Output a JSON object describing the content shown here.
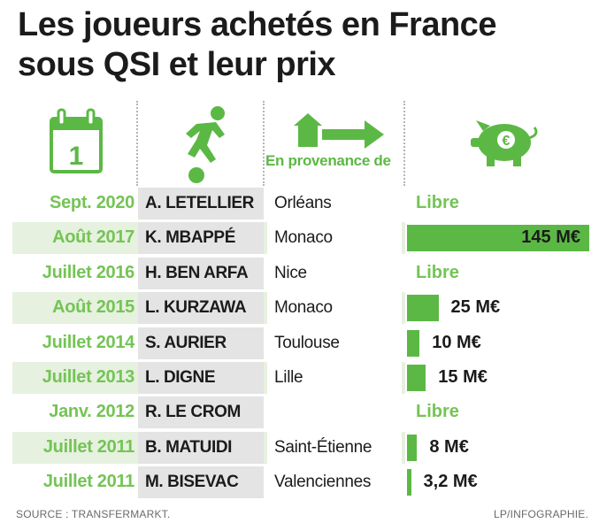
{
  "title_lines": [
    "Les joueurs achetés en France",
    "sous QSI et leur prix"
  ],
  "header": {
    "provenance_label": "En provenance de",
    "calendar_number": "1",
    "icons": [
      "calendar-icon",
      "football-player-icon",
      "house-arrow-icon",
      "piggy-bank-euro-icon"
    ]
  },
  "colors": {
    "accent": "#5cb845",
    "date_text": "#74c455",
    "row_band": "#e6f1df",
    "name_cell": "#e4e4e4"
  },
  "chart_data": {
    "type": "bar",
    "categories": [
      "A. LETELLIER",
      "K. MBAPPÉ",
      "H. BEN ARFA",
      "L. KURZAWA",
      "S. AURIER",
      "L. DIGNE",
      "R. LE CROM",
      "B. MATUIDI",
      "M. BISEVAC"
    ],
    "values": [
      0,
      145,
      0,
      25,
      10,
      15,
      0,
      8,
      3.2
    ],
    "unit": "M€",
    "max": 145,
    "rows": [
      {
        "date": "Sept. 2020",
        "player": "A. LETELLIER",
        "from": "Orléans",
        "value": null,
        "label": "Libre"
      },
      {
        "date": "Août 2017",
        "player": "K. MBAPPÉ",
        "from": "Monaco",
        "value": 145,
        "label": "145 M€"
      },
      {
        "date": "Juillet 2016",
        "player": "H. BEN ARFA",
        "from": "Nice",
        "value": null,
        "label": "Libre"
      },
      {
        "date": "Août 2015",
        "player": "L. KURZAWA",
        "from": "Monaco",
        "value": 25,
        "label": "25 M€"
      },
      {
        "date": "Juillet 2014",
        "player": "S. AURIER",
        "from": "Toulouse",
        "value": 10,
        "label": "10 M€"
      },
      {
        "date": "Juillet 2013",
        "player": "L. DIGNE",
        "from": "Lille",
        "value": 15,
        "label": "15 M€"
      },
      {
        "date": "Janv. 2012",
        "player": "R. LE CROM",
        "from": "",
        "value": null,
        "label": "Libre"
      },
      {
        "date": "Juillet 2011",
        "player": "B. MATUIDI",
        "from": "Saint-Étienne",
        "value": 8,
        "label": "8 M€"
      },
      {
        "date": "Juillet 2011",
        "player": "M. BISEVAC",
        "from": "Valenciennes",
        "value": 3.2,
        "label": "3,2 M€"
      }
    ]
  },
  "footer": {
    "source": "SOURCE : TRANSFERMARKT.",
    "credit": "LP/INFOGRAPHIE."
  }
}
